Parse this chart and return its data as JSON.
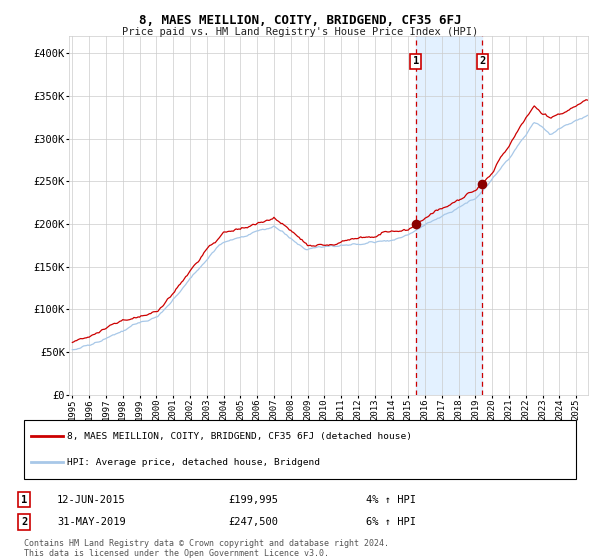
{
  "title": "8, MAES MEILLION, COITY, BRIDGEND, CF35 6FJ",
  "subtitle": "Price paid vs. HM Land Registry's House Price Index (HPI)",
  "ylim": [
    0,
    420000
  ],
  "yticks": [
    0,
    50000,
    100000,
    150000,
    200000,
    250000,
    300000,
    350000,
    400000
  ],
  "ytick_labels": [
    "£0",
    "£50K",
    "£100K",
    "£150K",
    "£200K",
    "£250K",
    "£300K",
    "£350K",
    "£400K"
  ],
  "sale1_date_year": 2015.44,
  "sale1_price": 199995,
  "sale1_label": "1",
  "sale1_text": "12-JUN-2015",
  "sale1_price_text": "£199,995",
  "sale1_pct": "4% ↑ HPI",
  "sale2_date_year": 2019.41,
  "sale2_price": 247500,
  "sale2_label": "2",
  "sale2_text": "31-MAY-2019",
  "sale2_price_text": "£247,500",
  "sale2_pct": "6% ↑ HPI",
  "hpi_line_color": "#a8c8e8",
  "price_line_color": "#cc0000",
  "marker_color": "#8b0000",
  "shade_color": "#ddeeff",
  "vline_color": "#cc0000",
  "grid_color": "#cccccc",
  "background_color": "#ffffff",
  "legend_label1": "8, MAES MEILLION, COITY, BRIDGEND, CF35 6FJ (detached house)",
  "legend_label2": "HPI: Average price, detached house, Bridgend",
  "footnote1": "Contains HM Land Registry data © Crown copyright and database right 2024.",
  "footnote2": "This data is licensed under the Open Government Licence v3.0.",
  "xstart": 1994.8,
  "xend": 2025.7,
  "xticks": [
    1995,
    1996,
    1997,
    1998,
    1999,
    2000,
    2001,
    2002,
    2003,
    2004,
    2005,
    2006,
    2007,
    2008,
    2009,
    2010,
    2011,
    2012,
    2013,
    2014,
    2015,
    2016,
    2017,
    2018,
    2019,
    2020,
    2021,
    2022,
    2023,
    2024,
    2025
  ]
}
